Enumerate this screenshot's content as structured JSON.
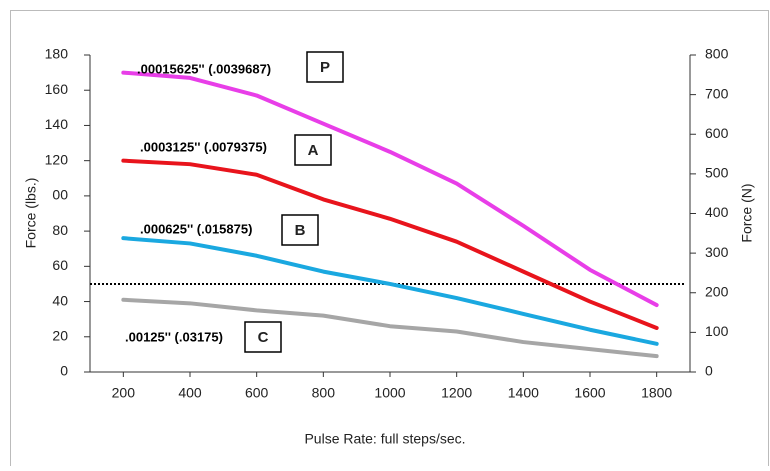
{
  "chart_data": {
    "type": "line",
    "x": [
      200,
      400,
      600,
      800,
      1000,
      1200,
      1400,
      1600,
      1800
    ],
    "xlim": [
      100,
      1900
    ],
    "xticks": [
      200,
      400,
      600,
      800,
      1000,
      1200,
      1400,
      1600,
      1800
    ],
    "ylim": [
      0,
      180
    ],
    "yticks": [
      0,
      20,
      40,
      60,
      80,
      {
        "value": 100,
        "label": "00"
      },
      120,
      140,
      160,
      180
    ],
    "y2lim": [
      0,
      800
    ],
    "y2ticks": [
      0,
      100,
      200,
      300,
      400,
      500,
      600,
      700,
      800
    ],
    "xlabel": "Pulse Rate: full steps/sec.",
    "ylabel": "Force (lbs.)",
    "y2label": "Force (N)",
    "reference_line": 50,
    "series": [
      {
        "name": ".00015625'' (.0039687)",
        "label": "P",
        "color": "#e83ee8",
        "values": [
          170,
          167,
          157,
          141,
          125,
          107,
          83,
          58,
          38
        ]
      },
      {
        "name": ".0003125'' (.0079375)",
        "label": "A",
        "color": "#e8141c",
        "values": [
          120,
          118,
          112,
          98,
          87,
          74,
          57,
          40,
          25
        ]
      },
      {
        "name": ".000625'' (.015875)",
        "label": "B",
        "color": "#1aa8e0",
        "values": [
          76,
          73,
          66,
          57,
          50,
          42,
          33,
          24,
          16
        ]
      },
      {
        "name": ".00125'' (.03175)",
        "label": "C",
        "color": "#a6a6a6",
        "values": [
          41,
          39,
          35,
          32,
          26,
          23,
          17,
          13,
          9
        ]
      }
    ]
  }
}
